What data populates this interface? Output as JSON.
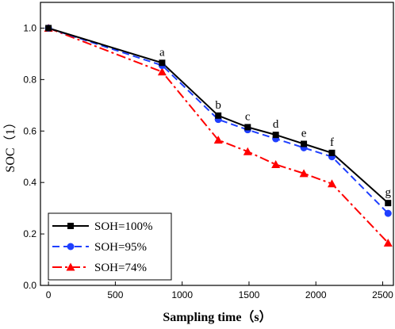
{
  "chart_data": {
    "type": "line",
    "title": "",
    "xlabel": "Sampling time（s）",
    "ylabel": "SOC（1）",
    "xlim": [
      -60,
      2580
    ],
    "ylim": [
      0,
      1.1
    ],
    "xticks": [
      0,
      500,
      1000,
      1500,
      2000,
      2500
    ],
    "yticks": [
      0.0,
      0.2,
      0.4,
      0.6,
      0.8,
      1.0
    ],
    "xtick_labels": [
      "0",
      "500",
      "1000",
      "1500",
      "2000",
      "2500"
    ],
    "ytick_labels": [
      "0.0",
      "0.2",
      "0.4",
      "0.6",
      "0.8",
      "1.0"
    ],
    "grid": false,
    "legend_position": "bottom-left",
    "series": [
      {
        "name": "SOH=100%",
        "color": "#000000",
        "line_style": "solid",
        "marker": "square",
        "x": [
          0,
          850,
          1270,
          1490,
          1700,
          1910,
          2120,
          2540
        ],
        "y": [
          1.0,
          0.865,
          0.66,
          0.615,
          0.585,
          0.55,
          0.515,
          0.32
        ]
      },
      {
        "name": "SOH=95%",
        "color": "#1f3fff",
        "line_style": "dashed",
        "marker": "circle",
        "x": [
          0,
          850,
          1270,
          1490,
          1700,
          1910,
          2120,
          2540
        ],
        "y": [
          1.0,
          0.855,
          0.645,
          0.605,
          0.57,
          0.535,
          0.5,
          0.28
        ]
      },
      {
        "name": "SOH=74%",
        "color": "#ff0000",
        "line_style": "dashdot",
        "marker": "triangle",
        "x": [
          0,
          850,
          1270,
          1490,
          1700,
          1910,
          2120,
          2540
        ],
        "y": [
          1.0,
          0.83,
          0.565,
          0.52,
          0.47,
          0.435,
          0.395,
          0.165
        ]
      }
    ],
    "annotations": [
      {
        "text": "a",
        "x": 850,
        "y": 0.865
      },
      {
        "text": "b",
        "x": 1270,
        "y": 0.66
      },
      {
        "text": "c",
        "x": 1490,
        "y": 0.615
      },
      {
        "text": "d",
        "x": 1700,
        "y": 0.585
      },
      {
        "text": "e",
        "x": 1910,
        "y": 0.55
      },
      {
        "text": "f",
        "x": 2120,
        "y": 0.515
      },
      {
        "text": "g",
        "x": 2540,
        "y": 0.32
      }
    ]
  }
}
